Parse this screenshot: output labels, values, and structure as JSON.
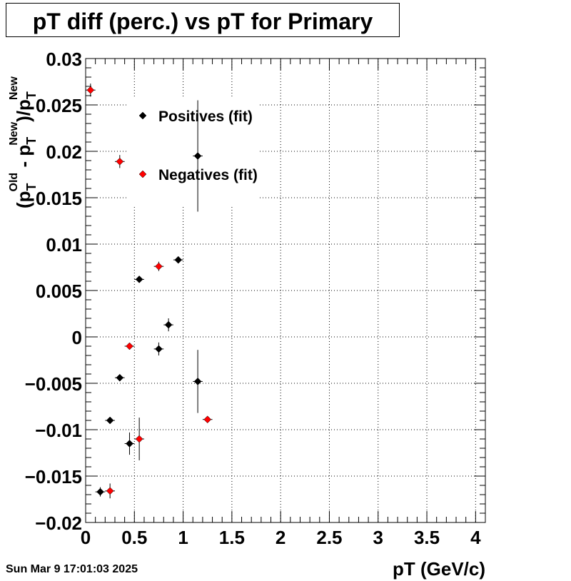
{
  "header": {
    "title": "pT diff (perc.) vs pT for Primary"
  },
  "footer": {
    "date": "Sun Mar  9 17:01:03 2025"
  },
  "chart_data": {
    "type": "scatter",
    "title": "pT diff (perc.) vs pT for Primary",
    "xlabel": "pT (GeV/c)",
    "ylabel_parts": [
      "(p",
      "T",
      "Old",
      " - p",
      "T",
      "New",
      ")/p",
      "T",
      "New"
    ],
    "xlim": [
      0,
      4.1
    ],
    "ylim": [
      -0.02,
      0.03
    ],
    "x_ticks": [
      0,
      0.5,
      1,
      1.5,
      2,
      2.5,
      3,
      3.5,
      4
    ],
    "x_tick_labels": [
      "0",
      "0.5",
      "1",
      "1.5",
      "2",
      "2.5",
      "3",
      "3.5",
      "4"
    ],
    "y_ticks": [
      -0.02,
      -0.015,
      -0.01,
      -0.005,
      0,
      0.005,
      0.01,
      0.015,
      0.02,
      0.025,
      0.03
    ],
    "y_tick_labels": [
      "−0.02",
      "−0.015",
      "−0.01",
      "−0.005",
      "0",
      "0.005",
      "0.01",
      "0.015",
      "0.02",
      "0.025",
      "0.03"
    ],
    "grid": true,
    "legend_position": "top-left",
    "series": [
      {
        "name": "Positives (fit)",
        "color": "#000000",
        "points": [
          {
            "x": 0.15,
            "y": -0.0167,
            "xerr": 0.05,
            "yerr": 0.0005
          },
          {
            "x": 0.25,
            "y": -0.009,
            "xerr": 0.05,
            "yerr": 0.0003
          },
          {
            "x": 0.35,
            "y": -0.0044,
            "xerr": 0.05,
            "yerr": 0.0003
          },
          {
            "x": 0.45,
            "y": -0.0115,
            "xerr": 0.05,
            "yerr": 0.0012
          },
          {
            "x": 0.55,
            "y": 0.0062,
            "xerr": 0.05,
            "yerr": 0.0003
          },
          {
            "x": 0.75,
            "y": -0.0013,
            "xerr": 0.05,
            "yerr": 0.0007
          },
          {
            "x": 0.85,
            "y": 0.0013,
            "xerr": 0.05,
            "yerr": 0.0007
          },
          {
            "x": 0.95,
            "y": 0.0083,
            "xerr": 0.05,
            "yerr": 0.0003
          },
          {
            "x": 1.15,
            "y": -0.0048,
            "xerr": 0.05,
            "yerr": 0.0034
          },
          {
            "x": 1.15,
            "y": 0.0195,
            "xerr": 0.05,
            "yerr": 0.006
          }
        ]
      },
      {
        "name": "Negatives (fit)",
        "color": "#ff0000",
        "points": [
          {
            "x": 0.05,
            "y": 0.0266,
            "xerr": 0.05,
            "yerr": 0.0007
          },
          {
            "x": 0.25,
            "y": -0.0166,
            "xerr": 0.05,
            "yerr": 0.0008
          },
          {
            "x": 0.35,
            "y": 0.0189,
            "xerr": 0.05,
            "yerr": 0.0007
          },
          {
            "x": 0.45,
            "y": -0.001,
            "xerr": 0.05,
            "yerr": 0.0003
          },
          {
            "x": 0.55,
            "y": -0.011,
            "xerr": 0.05,
            "yerr": 0.0023
          },
          {
            "x": 0.75,
            "y": 0.0076,
            "xerr": 0.05,
            "yerr": 0.0005
          },
          {
            "x": 1.25,
            "y": -0.0089,
            "xerr": 0.05,
            "yerr": 0.0003
          }
        ]
      }
    ]
  }
}
